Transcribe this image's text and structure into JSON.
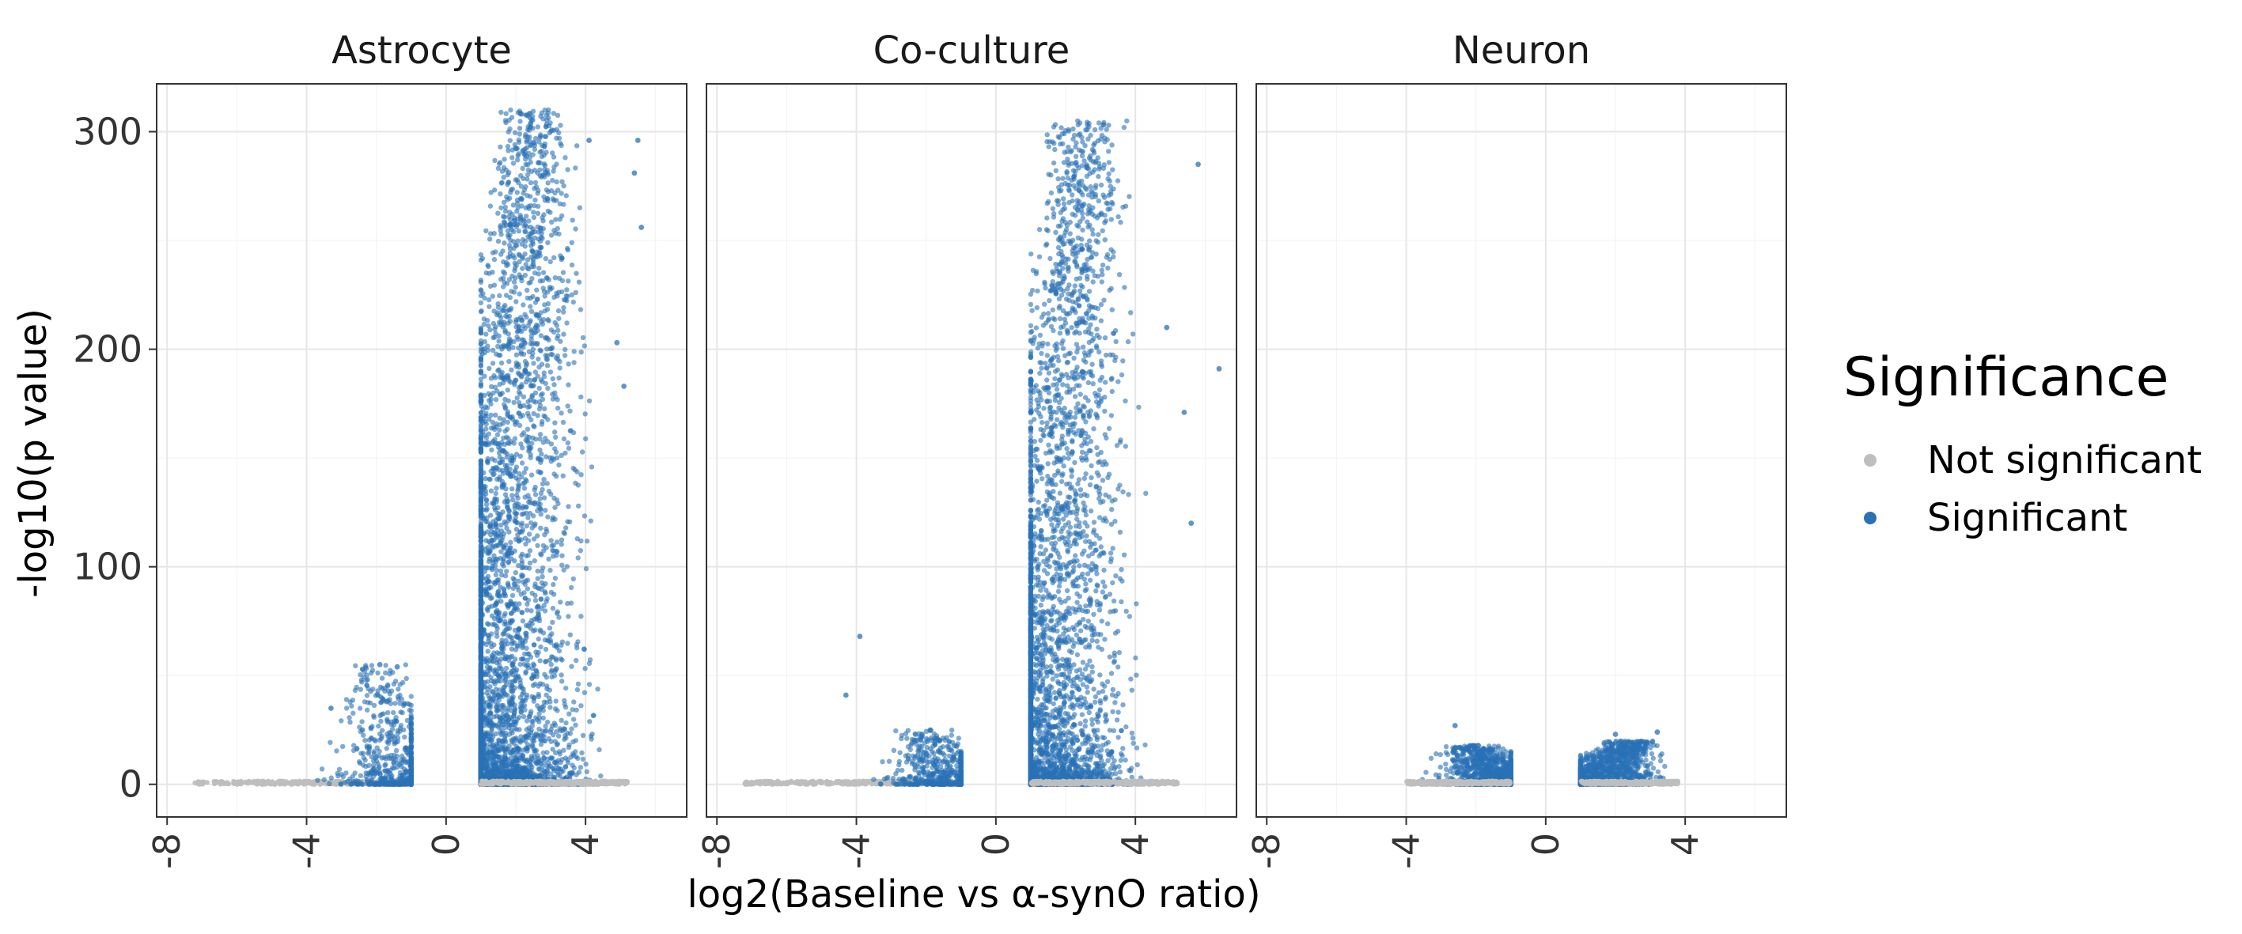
{
  "chart_data": {
    "type": "scatter",
    "kind": "volcano plot, faceted",
    "xlabel": "log2(Baseline vs α-synO ratio)",
    "ylabel": "-log10(p value)",
    "xlim": [
      -8.3,
      6.9
    ],
    "ylim": [
      -15,
      322
    ],
    "x_ticks": [
      -8,
      -4,
      0,
      4
    ],
    "x_tick_labels": [
      "-8",
      "-4",
      "0",
      "4"
    ],
    "x_tick_label_rotation": -90,
    "y_ticks": [
      0,
      100,
      200,
      300
    ],
    "y_tick_labels": [
      "0",
      "100",
      "200",
      "300"
    ],
    "grid": true,
    "legend": {
      "title": "Significance",
      "position": "right",
      "entries": [
        {
          "label": "Not significant",
          "color": "#bebebe"
        },
        {
          "label": "Significant",
          "color": "#2a72b5"
        }
      ]
    },
    "colors": {
      "not_significant": "#bebebe",
      "significant": "#2a72b5"
    },
    "facets": [
      {
        "title": "Astrocyte",
        "clusters": [
          {
            "class": "not_significant",
            "x": [
              -7.2,
              -1.0
            ],
            "y": [
              0,
              1.5
            ],
            "count": 320
          },
          {
            "class": "significant",
            "x": [
              -4.5,
              -1.0
            ],
            "y": [
              0,
              55
            ],
            "count": 700
          },
          {
            "class": "significant",
            "x": [
              1.0,
              5.6
            ],
            "y": [
              0,
              310
            ],
            "count": 5200
          },
          {
            "class": "not_significant",
            "x": [
              1.0,
              5.2
            ],
            "y": [
              0,
              1.5
            ],
            "count": 420
          }
        ],
        "outliers": [
          {
            "x": -1.9,
            "y": 55
          },
          {
            "x": -1.4,
            "y": 54
          },
          {
            "x": -1.7,
            "y": 38
          },
          {
            "x": -3.3,
            "y": 35
          },
          {
            "x": -2.4,
            "y": 25
          },
          {
            "x": 4.1,
            "y": 296
          },
          {
            "x": 5.5,
            "y": 296
          },
          {
            "x": 5.6,
            "y": 256
          },
          {
            "x": 5.4,
            "y": 281
          },
          {
            "x": 4.9,
            "y": 203
          },
          {
            "x": 5.1,
            "y": 183
          }
        ]
      },
      {
        "title": "Co-culture",
        "clusters": [
          {
            "class": "not_significant",
            "x": [
              -7.2,
              -1.0
            ],
            "y": [
              0,
              1.5
            ],
            "count": 300
          },
          {
            "class": "significant",
            "x": [
              -4.2,
              -1.0
            ],
            "y": [
              0,
              25
            ],
            "count": 650
          },
          {
            "class": "significant",
            "x": [
              1.0,
              5.4
            ],
            "y": [
              0,
              305
            ],
            "count": 4300
          },
          {
            "class": "not_significant",
            "x": [
              1.0,
              5.2
            ],
            "y": [
              0,
              1.5
            ],
            "count": 380
          }
        ],
        "outliers": [
          {
            "x": -3.9,
            "y": 68
          },
          {
            "x": -4.3,
            "y": 41
          },
          {
            "x": 6.4,
            "y": 191
          },
          {
            "x": 5.8,
            "y": 285
          },
          {
            "x": 5.6,
            "y": 120
          },
          {
            "x": 5.4,
            "y": 171
          },
          {
            "x": 4.9,
            "y": 210
          }
        ]
      },
      {
        "title": "Neuron",
        "clusters": [
          {
            "class": "significant",
            "x": [
              -4.4,
              -1.0
            ],
            "y": [
              0,
              18
            ],
            "count": 1600
          },
          {
            "class": "significant",
            "x": [
              1.0,
              4.2
            ],
            "y": [
              0,
              20
            ],
            "count": 1700
          },
          {
            "class": "not_significant",
            "x": [
              -4.0,
              -1.0
            ],
            "y": [
              0,
              1.5
            ],
            "count": 300
          },
          {
            "class": "not_significant",
            "x": [
              1.0,
              3.8
            ],
            "y": [
              0,
              1.5
            ],
            "count": 300
          }
        ],
        "outliers": [
          {
            "x": -2.6,
            "y": 27
          },
          {
            "x": 2.0,
            "y": 23
          },
          {
            "x": 3.2,
            "y": 24
          }
        ]
      }
    ]
  }
}
